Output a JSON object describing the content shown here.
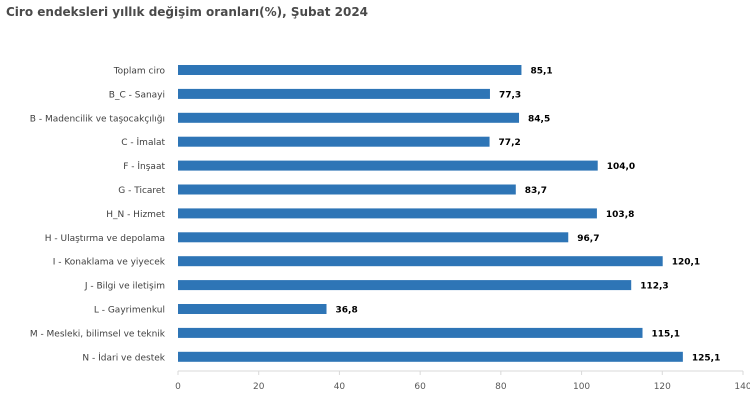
{
  "title": "Ciro endeksleri yıllık değişim oranları(%), Şubat 2024",
  "chart_data": {
    "type": "bar",
    "orientation": "horizontal",
    "title": "Ciro endeksleri yıllık değişim oranları(%), Şubat 2024",
    "xlabel": "",
    "ylabel": "",
    "categories": [
      "Toplam ciro",
      "B_C - Sanayi",
      "B - Madencilik ve taşocakçılığı",
      "C - İmalat",
      "F - İnşaat",
      "G - Ticaret",
      "H_N - Hizmet",
      "H - Ulaştırma ve depolama",
      "I - Konaklama ve yiyecek",
      "J - Bilgi ve iletişim",
      "L - Gayrimenkul",
      "M - Mesleki, bilimsel ve teknik",
      "N - İdari ve destek"
    ],
    "values": [
      85.1,
      77.3,
      84.5,
      77.2,
      104.0,
      83.7,
      103.8,
      96.7,
      120.1,
      112.3,
      36.8,
      115.1,
      125.1
    ],
    "value_labels": [
      "85,1",
      "77,3",
      "84,5",
      "77,2",
      "104,0",
      "83,7",
      "103,8",
      "96,7",
      "120,1",
      "112,3",
      "36,8",
      "115,1",
      "125,1"
    ],
    "xlim": [
      0,
      140
    ],
    "xticks": [
      0,
      20,
      40,
      60,
      80,
      100,
      120,
      140
    ],
    "grid": false,
    "legend": "none",
    "bar_color": "#2e75b6",
    "axis_color": "#d9d9d9"
  }
}
